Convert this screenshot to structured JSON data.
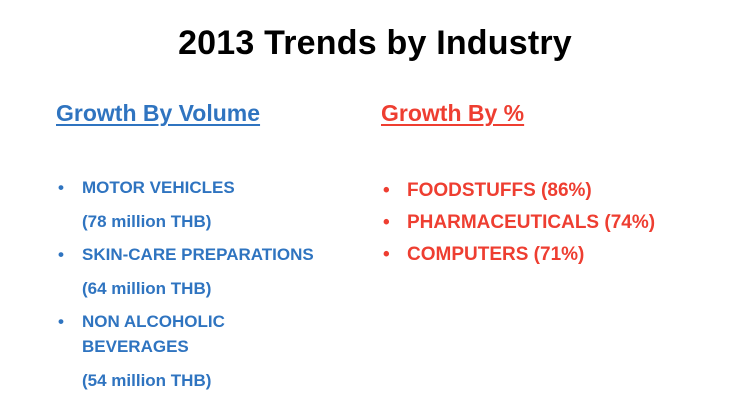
{
  "title": "2013 Trends by Industry",
  "colors": {
    "title": "#000000",
    "volume": "#2f74c0",
    "percent": "#ee3e31"
  },
  "volume": {
    "heading": "Growth By Volume",
    "bullet": "•",
    "items": [
      {
        "lines": [
          "MOTOR VEHICLES"
        ],
        "sub": "(78 million THB)"
      },
      {
        "lines": [
          "SKIN-CARE PREPARATIONS"
        ],
        "sub": "(64 million THB)"
      },
      {
        "lines": [
          "NON ALCOHOLIC",
          "BEVERAGES"
        ],
        "sub": "(54 million THB)"
      }
    ]
  },
  "percent": {
    "heading": "Growth By %",
    "bullet": "•",
    "items": [
      {
        "text": "FOODSTUFFS (86%)"
      },
      {
        "text": "PHARMACEUTICALS (74%)"
      },
      {
        "text": "COMPUTERS (71%)"
      }
    ]
  }
}
